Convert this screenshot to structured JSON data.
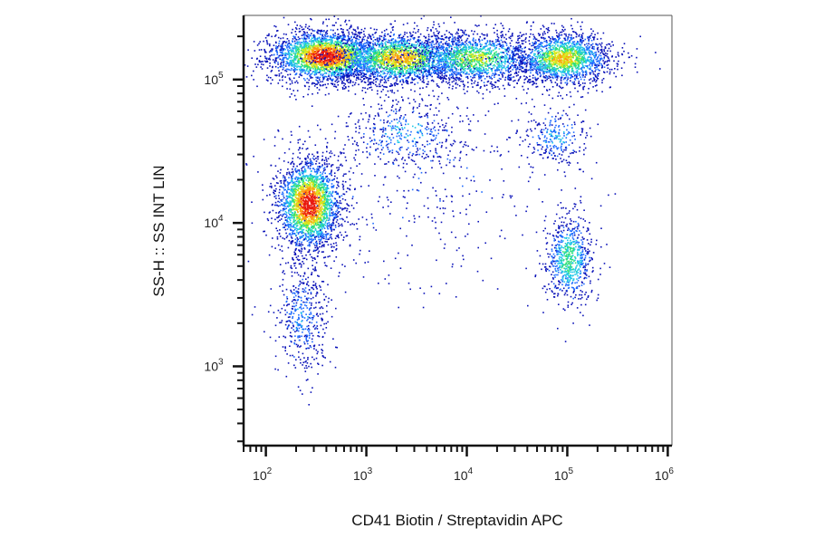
{
  "chart_data": {
    "type": "scatter",
    "subtype": "flow-cytometry-density-dot-plot",
    "title": "",
    "xlabel": "CD41 Biotin / Streptavidin APC",
    "ylabel": "SS-H :: SS INT LIN",
    "x_scale": "log",
    "y_scale": "log",
    "xlim": [
      60,
      1100000
    ],
    "ylim": [
      280,
      280000
    ],
    "x_ticks": [
      {
        "value": 100,
        "base": "10",
        "exp": "2"
      },
      {
        "value": 1000,
        "base": "10",
        "exp": "3"
      },
      {
        "value": 10000,
        "base": "10",
        "exp": "4"
      },
      {
        "value": 100000,
        "base": "10",
        "exp": "5"
      },
      {
        "value": 1000000,
        "base": "10",
        "exp": "6"
      }
    ],
    "y_ticks": [
      {
        "value": 1000,
        "base": "10",
        "exp": "3"
      },
      {
        "value": 10000,
        "base": "10",
        "exp": "4"
      },
      {
        "value": 100000,
        "base": "10",
        "exp": "5"
      }
    ],
    "color_scale": [
      "#0a12b8",
      "#1f6bff",
      "#22c8e8",
      "#2ee07a",
      "#d8e81a",
      "#ff9a10",
      "#e81a10"
    ],
    "populations": [
      {
        "cx": 400,
        "cy": 145000,
        "sx": 0.28,
        "sy": 0.09,
        "n": 2600,
        "peak": 1.0
      },
      {
        "cx": 2200,
        "cy": 140000,
        "sx": 0.32,
        "sy": 0.09,
        "n": 2000,
        "peak": 0.78
      },
      {
        "cx": 12000,
        "cy": 140000,
        "sx": 0.32,
        "sy": 0.09,
        "n": 1500,
        "peak": 0.62
      },
      {
        "cx": 90000,
        "cy": 140000,
        "sx": 0.24,
        "sy": 0.09,
        "n": 1700,
        "peak": 0.72
      },
      {
        "cx": 270,
        "cy": 13500,
        "sx": 0.16,
        "sy": 0.16,
        "n": 2300,
        "peak": 1.0
      },
      {
        "cx": 105000,
        "cy": 5500,
        "sx": 0.12,
        "sy": 0.16,
        "n": 700,
        "peak": 0.5
      },
      {
        "cx": 80000,
        "cy": 40000,
        "sx": 0.18,
        "sy": 0.1,
        "n": 260,
        "peak": 0.3
      },
      {
        "cx": 2500,
        "cy": 42000,
        "sx": 0.3,
        "sy": 0.12,
        "n": 380,
        "peak": 0.3
      },
      {
        "cx": 230,
        "cy": 2200,
        "sx": 0.13,
        "sy": 0.2,
        "n": 450,
        "peak": 0.25
      },
      {
        "cx": 3000,
        "cy": 20000,
        "sx": 0.8,
        "sy": 0.45,
        "n": 420,
        "peak": 0.1
      }
    ]
  }
}
